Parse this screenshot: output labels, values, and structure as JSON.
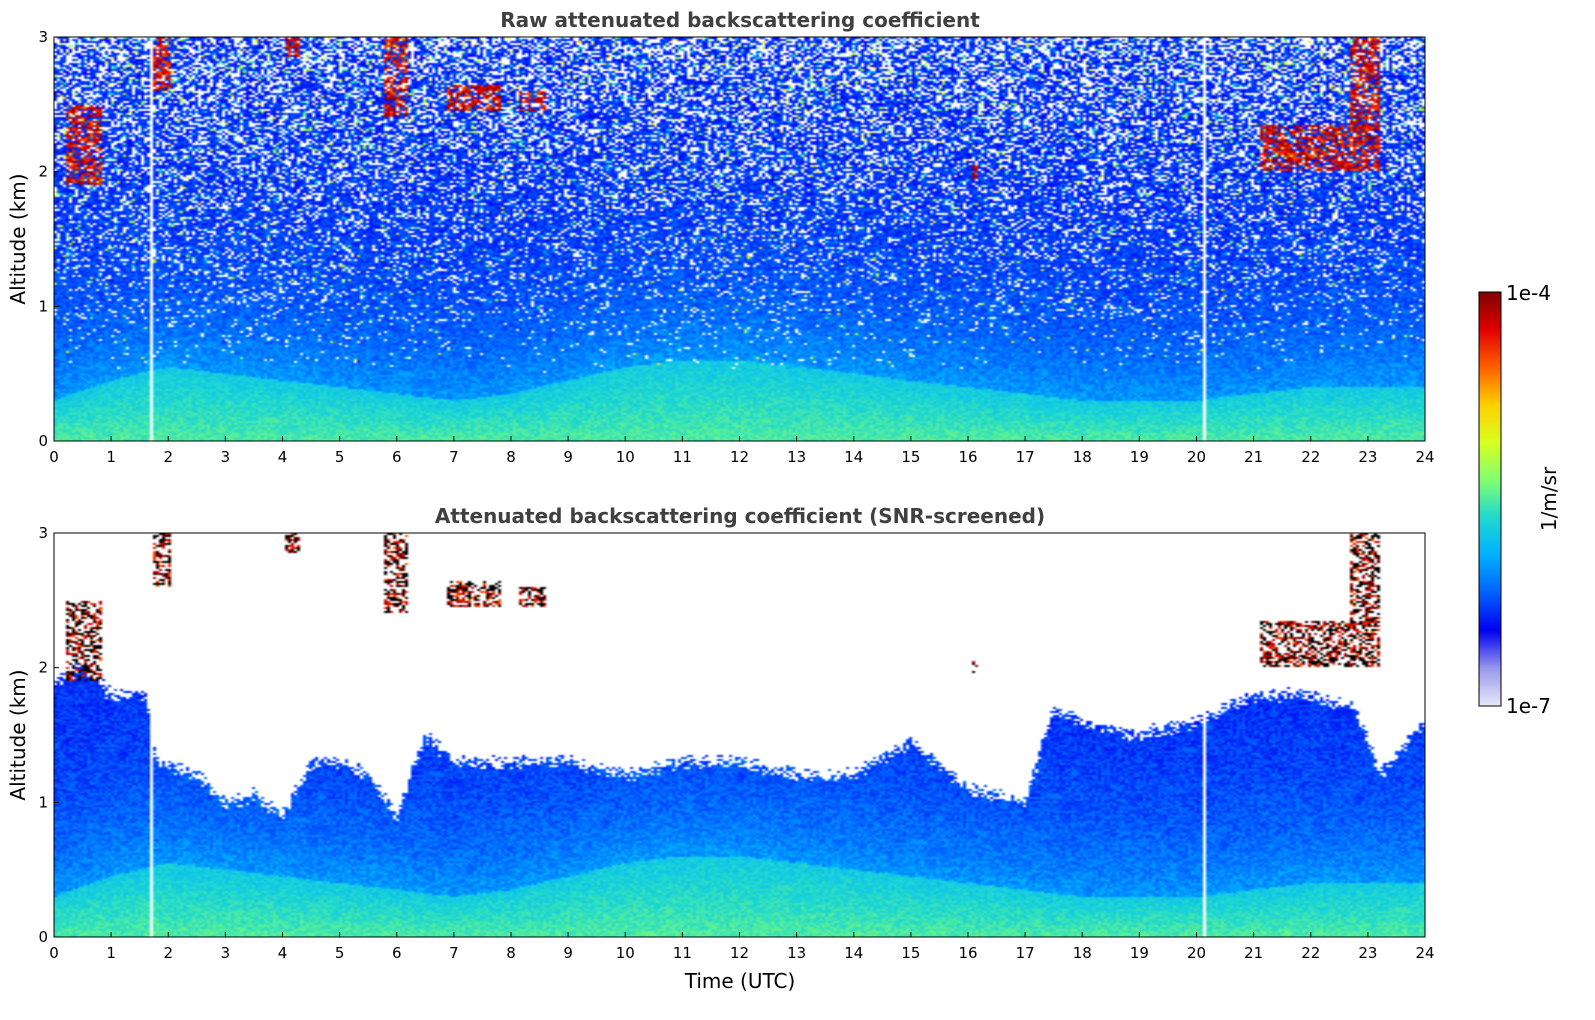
{
  "chart_data": [
    {
      "type": "heatmap",
      "title": "Raw attenuated backscattering coefficient",
      "xlabel": "",
      "ylabel": "Altitude (km)",
      "xlim": [
        0,
        24
      ],
      "ylim": [
        0,
        3
      ],
      "xticks": [
        "0",
        "1",
        "2",
        "3",
        "4",
        "5",
        "6",
        "7",
        "8",
        "9",
        "10",
        "11",
        "12",
        "13",
        "14",
        "15",
        "16",
        "17",
        "18",
        "19",
        "20",
        "21",
        "22",
        "23",
        "24"
      ],
      "yticks": [
        "0",
        "1",
        "2",
        "3"
      ],
      "gaps_x": [
        1.7,
        20.15
      ],
      "noise_level": 0.85,
      "boundary_layer_top_km": [
        [
          0,
          0.3
        ],
        [
          1,
          0.45
        ],
        [
          2,
          0.55
        ],
        [
          3,
          0.5
        ],
        [
          4,
          0.45
        ],
        [
          5,
          0.4
        ],
        [
          6,
          0.35
        ],
        [
          7,
          0.3
        ],
        [
          8,
          0.35
        ],
        [
          9,
          0.45
        ],
        [
          10,
          0.55
        ],
        [
          11,
          0.6
        ],
        [
          12,
          0.6
        ],
        [
          13,
          0.55
        ],
        [
          14,
          0.5
        ],
        [
          15,
          0.45
        ],
        [
          16,
          0.4
        ],
        [
          17,
          0.35
        ],
        [
          18,
          0.3
        ],
        [
          19,
          0.3
        ],
        [
          20,
          0.3
        ],
        [
          21,
          0.35
        ],
        [
          22,
          0.4
        ],
        [
          23,
          0.4
        ],
        [
          24,
          0.4
        ]
      ],
      "cloud_patches": [
        {
          "x0": 0.2,
          "x1": 0.85,
          "y0": 1.9,
          "y1": 2.5
        },
        {
          "x0": 1.75,
          "x1": 2.05,
          "y0": 2.6,
          "y1": 3.0
        },
        {
          "x0": 4.05,
          "x1": 4.3,
          "y0": 2.85,
          "y1": 3.0
        },
        {
          "x0": 5.8,
          "x1": 6.2,
          "y0": 2.4,
          "y1": 3.0
        },
        {
          "x0": 6.9,
          "x1": 7.8,
          "y0": 2.45,
          "y1": 2.65
        },
        {
          "x0": 8.15,
          "x1": 8.6,
          "y0": 2.45,
          "y1": 2.6
        },
        {
          "x0": 16.05,
          "x1": 16.2,
          "y0": 1.95,
          "y1": 2.05
        },
        {
          "x0": 21.1,
          "x1": 23.2,
          "y0": 2.0,
          "y1": 2.35
        },
        {
          "x0": 22.7,
          "x1": 23.2,
          "y0": 2.3,
          "y1": 3.0
        }
      ]
    },
    {
      "type": "heatmap",
      "title": "Attenuated backscattering coefficient (SNR-screened)",
      "xlabel": "Time (UTC)",
      "ylabel": "Altitude (km)",
      "xlim": [
        0,
        24
      ],
      "ylim": [
        0,
        3
      ],
      "xticks": [
        "0",
        "1",
        "2",
        "3",
        "4",
        "5",
        "6",
        "7",
        "8",
        "9",
        "10",
        "11",
        "12",
        "13",
        "14",
        "15",
        "16",
        "17",
        "18",
        "19",
        "20",
        "21",
        "22",
        "23",
        "24"
      ],
      "yticks": [
        "0",
        "1",
        "2",
        "3"
      ],
      "gaps_x": [
        1.7,
        20.15
      ],
      "noise_level": 0.1,
      "signal_top_km": [
        [
          0,
          1.9
        ],
        [
          0.5,
          2.0
        ],
        [
          1,
          1.8
        ],
        [
          1.6,
          1.8
        ],
        [
          1.8,
          1.3
        ],
        [
          2.5,
          1.2
        ],
        [
          3,
          1.0
        ],
        [
          3.5,
          1.05
        ],
        [
          4,
          0.9
        ],
        [
          4.5,
          1.3
        ],
        [
          5,
          1.3
        ],
        [
          5.5,
          1.2
        ],
        [
          6,
          0.9
        ],
        [
          6.5,
          1.5
        ],
        [
          7,
          1.3
        ],
        [
          8,
          1.3
        ],
        [
          9,
          1.3
        ],
        [
          10,
          1.2
        ],
        [
          11,
          1.3
        ],
        [
          12,
          1.3
        ],
        [
          13,
          1.2
        ],
        [
          14,
          1.2
        ],
        [
          15,
          1.45
        ],
        [
          16,
          1.1
        ],
        [
          17,
          1.0
        ],
        [
          17.5,
          1.7
        ],
        [
          18,
          1.6
        ],
        [
          19,
          1.5
        ],
        [
          20,
          1.6
        ],
        [
          21,
          1.8
        ],
        [
          22,
          1.8
        ],
        [
          22.8,
          1.7
        ],
        [
          23.2,
          1.2
        ],
        [
          24,
          1.6
        ]
      ],
      "boundary_layer_top_km": [
        [
          0,
          0.3
        ],
        [
          1,
          0.45
        ],
        [
          2,
          0.55
        ],
        [
          3,
          0.5
        ],
        [
          4,
          0.45
        ],
        [
          5,
          0.4
        ],
        [
          6,
          0.35
        ],
        [
          7,
          0.3
        ],
        [
          8,
          0.35
        ],
        [
          9,
          0.45
        ],
        [
          10,
          0.55
        ],
        [
          11,
          0.6
        ],
        [
          12,
          0.6
        ],
        [
          13,
          0.55
        ],
        [
          14,
          0.5
        ],
        [
          15,
          0.45
        ],
        [
          16,
          0.4
        ],
        [
          17,
          0.35
        ],
        [
          18,
          0.3
        ],
        [
          19,
          0.3
        ],
        [
          20,
          0.3
        ],
        [
          21,
          0.35
        ],
        [
          22,
          0.4
        ],
        [
          23,
          0.4
        ],
        [
          24,
          0.4
        ]
      ],
      "cloud_patches": [
        {
          "x0": 0.2,
          "x1": 0.85,
          "y0": 1.9,
          "y1": 2.5
        },
        {
          "x0": 1.75,
          "x1": 2.05,
          "y0": 2.6,
          "y1": 3.0
        },
        {
          "x0": 4.05,
          "x1": 4.3,
          "y0": 2.85,
          "y1": 3.0
        },
        {
          "x0": 5.8,
          "x1": 6.2,
          "y0": 2.4,
          "y1": 3.0
        },
        {
          "x0": 6.9,
          "x1": 7.8,
          "y0": 2.45,
          "y1": 2.65
        },
        {
          "x0": 8.15,
          "x1": 8.6,
          "y0": 2.45,
          "y1": 2.6
        },
        {
          "x0": 16.05,
          "x1": 16.2,
          "y0": 1.95,
          "y1": 2.05
        },
        {
          "x0": 21.1,
          "x1": 23.2,
          "y0": 2.0,
          "y1": 2.35
        },
        {
          "x0": 22.7,
          "x1": 23.2,
          "y0": 2.3,
          "y1": 3.0
        }
      ]
    }
  ],
  "colorbar": {
    "label": "1/m/sr",
    "max_label": "1e-4",
    "min_label": "1e-7",
    "stops": [
      "#e8e8f8",
      "#9898ec",
      "#0000f0",
      "#0060ff",
      "#00b0ff",
      "#20d8d0",
      "#80ff70",
      "#d8ff20",
      "#ffd000",
      "#ff6000",
      "#e00000",
      "#800000"
    ]
  }
}
